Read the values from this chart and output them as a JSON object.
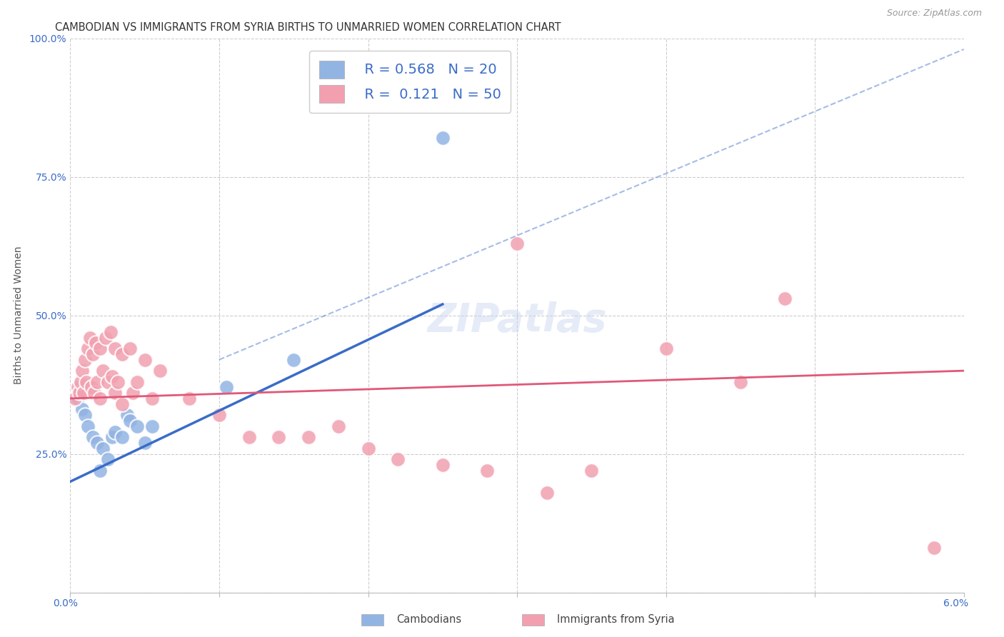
{
  "title": "CAMBODIAN VS IMMIGRANTS FROM SYRIA BIRTHS TO UNMARRIED WOMEN CORRELATION CHART",
  "source": "Source: ZipAtlas.com",
  "ylabel": "Births to Unmarried Women",
  "xlim": [
    0.0,
    6.0
  ],
  "ylim": [
    0.0,
    100.0
  ],
  "yticks": [
    0,
    25,
    50,
    75,
    100
  ],
  "ytick_labels": [
    "",
    "25.0%",
    "50.0%",
    "75.0%",
    "100.0%"
  ],
  "background_color": "#ffffff",
  "grid_color": "#c8c8c8",
  "watermark": "ZIPatlas",
  "cambodian_color": "#92b4e3",
  "syria_color": "#f2a0b0",
  "cambodian_line_color": "#3a6cc8",
  "syria_line_color": "#e05878",
  "cambodian_scatter": [
    [
      0.05,
      35
    ],
    [
      0.08,
      33
    ],
    [
      0.1,
      32
    ],
    [
      0.12,
      30
    ],
    [
      0.15,
      28
    ],
    [
      0.18,
      27
    ],
    [
      0.2,
      22
    ],
    [
      0.22,
      26
    ],
    [
      0.25,
      24
    ],
    [
      0.28,
      28
    ],
    [
      0.3,
      29
    ],
    [
      0.35,
      28
    ],
    [
      0.38,
      32
    ],
    [
      0.4,
      31
    ],
    [
      0.45,
      30
    ],
    [
      0.5,
      27
    ],
    [
      0.55,
      30
    ],
    [
      1.05,
      37
    ],
    [
      1.5,
      42
    ],
    [
      2.5,
      82
    ]
  ],
  "syria_scatter": [
    [
      0.03,
      35
    ],
    [
      0.05,
      37
    ],
    [
      0.06,
      36
    ],
    [
      0.07,
      38
    ],
    [
      0.08,
      40
    ],
    [
      0.09,
      36
    ],
    [
      0.1,
      42
    ],
    [
      0.11,
      38
    ],
    [
      0.12,
      44
    ],
    [
      0.13,
      46
    ],
    [
      0.14,
      37
    ],
    [
      0.15,
      43
    ],
    [
      0.16,
      36
    ],
    [
      0.17,
      45
    ],
    [
      0.18,
      38
    ],
    [
      0.2,
      44
    ],
    [
      0.2,
      35
    ],
    [
      0.22,
      40
    ],
    [
      0.24,
      46
    ],
    [
      0.25,
      38
    ],
    [
      0.27,
      47
    ],
    [
      0.28,
      39
    ],
    [
      0.3,
      44
    ],
    [
      0.3,
      36
    ],
    [
      0.32,
      38
    ],
    [
      0.35,
      43
    ],
    [
      0.35,
      34
    ],
    [
      0.4,
      44
    ],
    [
      0.42,
      36
    ],
    [
      0.45,
      38
    ],
    [
      0.5,
      42
    ],
    [
      0.55,
      35
    ],
    [
      0.6,
      40
    ],
    [
      0.8,
      35
    ],
    [
      1.0,
      32
    ],
    [
      1.2,
      28
    ],
    [
      1.4,
      28
    ],
    [
      1.6,
      28
    ],
    [
      1.8,
      30
    ],
    [
      2.0,
      26
    ],
    [
      2.2,
      24
    ],
    [
      2.5,
      23
    ],
    [
      2.8,
      22
    ],
    [
      3.0,
      63
    ],
    [
      3.2,
      18
    ],
    [
      3.5,
      22
    ],
    [
      4.0,
      44
    ],
    [
      4.5,
      38
    ],
    [
      4.8,
      53
    ],
    [
      5.8,
      8
    ]
  ],
  "cambodian_line": {
    "x0": 0.0,
    "y0": 20.0,
    "x1": 2.5,
    "y1": 52.0
  },
  "syria_line": {
    "x0": 0.0,
    "y0": 35.0,
    "x1": 6.0,
    "y1": 40.0
  },
  "dashed_line": {
    "x0": 1.0,
    "y0": 42.0,
    "x1": 6.0,
    "y1": 98.0
  },
  "title_fontsize": 10.5,
  "source_fontsize": 9,
  "axis_label_fontsize": 10,
  "tick_fontsize": 10,
  "legend_fontsize": 14,
  "watermark_fontsize": 40,
  "watermark_color": "#c8d4f0",
  "watermark_alpha": 0.45
}
